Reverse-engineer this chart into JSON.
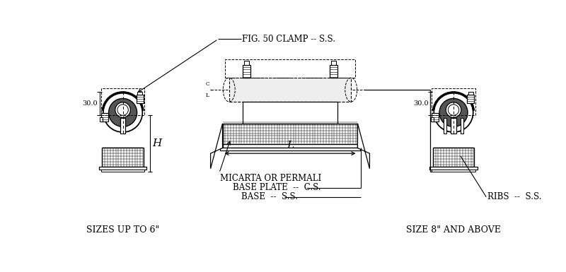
{
  "bg_color": "#ffffff",
  "line_color": "#000000",
  "labels": {
    "fig50": "FIG. 50 CLAMP -- S.S.",
    "sizes_up": "SIZES UP TO 6\"",
    "size8": "SIZE 8\" AND ABOVE",
    "micarta": "MICARTA OR PERMALI",
    "base_plate": "BASE PLATE  --  C.S.",
    "base": "BASE  --  S.S.",
    "ribs": "RIBS  --  S.S.",
    "H": "H",
    "L": "L",
    "dim30_left": "30.0",
    "dim30_right": "30.0"
  }
}
